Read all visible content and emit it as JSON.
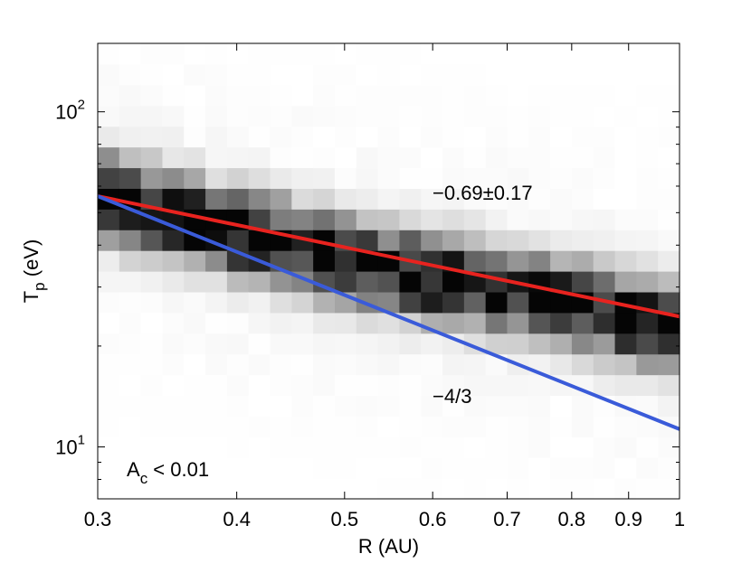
{
  "chart_data": {
    "type": "heatmap",
    "xlabel": "R (AU)",
    "ylabel": {
      "main": "T",
      "sub": "p",
      "rest": " (eV)"
    },
    "x_scale": "log",
    "y_scale": "log",
    "xlim": [
      0.3,
      1.0
    ],
    "ylim": [
      7.0,
      160.0
    ],
    "x_ticks": [
      {
        "value": 0.3,
        "label": "0.3"
      },
      {
        "value": 0.4,
        "label": "0.4"
      },
      {
        "value": 0.5,
        "label": "0.5"
      },
      {
        "value": 0.6,
        "label": "0.6"
      },
      {
        "value": 0.7,
        "label": "0.7"
      },
      {
        "value": 0.8,
        "label": "0.8"
      },
      {
        "value": 0.9,
        "label": "0.9"
      },
      {
        "value": 1.0,
        "label": "1"
      }
    ],
    "y_ticks": [
      {
        "value": 10,
        "base": "10",
        "exp": "1"
      },
      {
        "value": 100,
        "base": "10",
        "exp": "2"
      }
    ],
    "annotation": {
      "main": "A",
      "sub": "c",
      "rest": " < 0.01"
    },
    "fit_lines": [
      {
        "label": "−0.69±0.17",
        "slope": -0.69,
        "x": [
          0.3,
          1.0
        ],
        "y": [
          56.0,
          24.5
        ],
        "color": "#e8231f"
      },
      {
        "label": "−4/3",
        "slope": -1.3333,
        "x": [
          0.3,
          1.0
        ],
        "y": [
          56.0,
          11.3
        ],
        "color": "#3a5bd9"
      }
    ],
    "heatmap": {
      "x_range": [
        0.3,
        1.0
      ],
      "y_range": [
        7.0,
        160.0
      ],
      "ncols": 27,
      "nrows": 22,
      "col_centers": [
        0.307,
        0.322,
        0.337,
        0.352,
        0.368,
        0.385,
        0.403,
        0.422,
        0.442,
        0.462,
        0.484,
        0.506,
        0.53,
        0.555,
        0.58,
        0.607,
        0.635,
        0.665,
        0.696,
        0.728,
        0.762,
        0.797,
        0.834,
        0.873,
        0.914,
        0.956,
        0.978
      ],
      "ridge_T_eV": [
        56,
        53,
        51,
        49,
        47,
        45,
        43.5,
        42,
        40.5,
        39,
        37.5,
        36,
        35,
        34,
        33,
        32,
        31.2,
        30.4,
        29.6,
        28.8,
        28,
        27,
        26,
        25.2,
        24.4,
        23.6,
        23
      ],
      "ridge_halfwidth_log10": 0.085,
      "noise_seed": 7
    }
  }
}
